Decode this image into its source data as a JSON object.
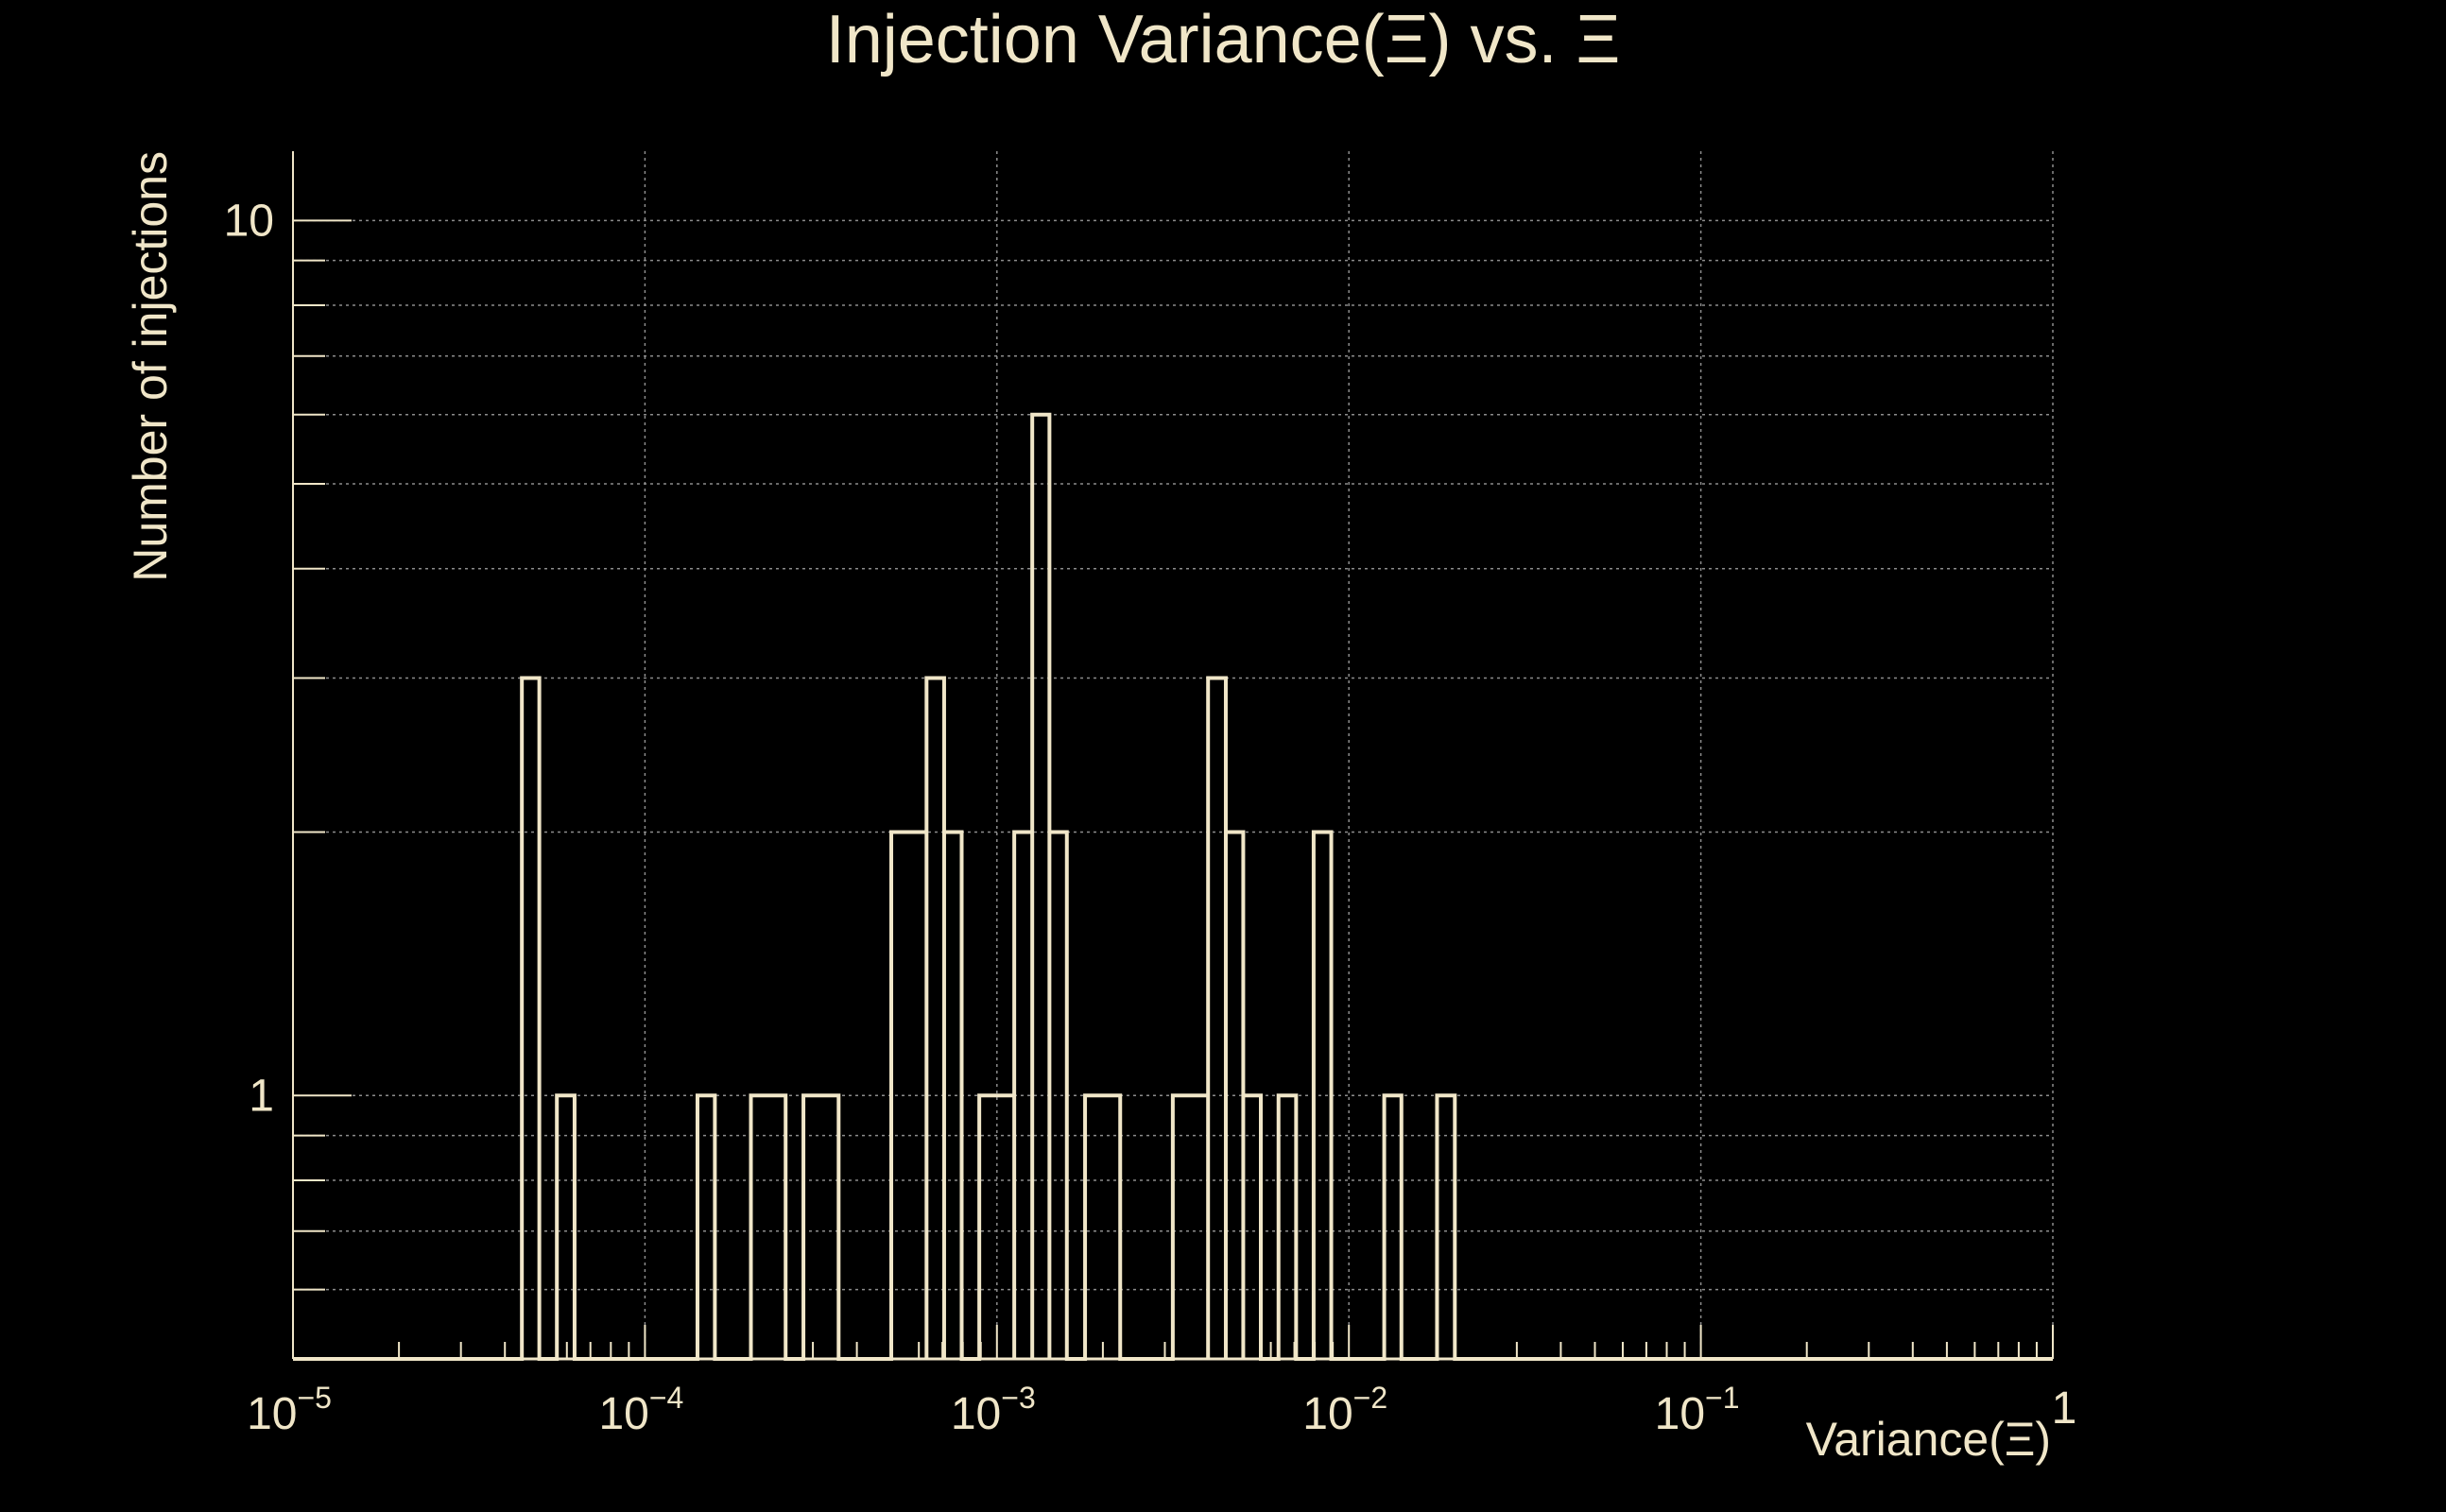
{
  "chart_data": {
    "type": "histogram",
    "title": "Injection Variance(Ξ) vs. Ξ",
    "xlabel": "Variance(Ξ)",
    "ylabel": "Number of injections",
    "x_scale": "log",
    "y_scale": "log",
    "xlim": [
      1e-05,
      1
    ],
    "ylim": [
      0.5,
      12
    ],
    "grid": true,
    "x_ticks": [
      {
        "value": 1e-05,
        "base": "10",
        "exp": "−5"
      },
      {
        "value": 0.0001,
        "base": "10",
        "exp": "−4"
      },
      {
        "value": 0.001,
        "base": "10",
        "exp": "−3"
      },
      {
        "value": 0.01,
        "base": "10",
        "exp": "−2"
      },
      {
        "value": 0.1,
        "base": "10",
        "exp": "−1"
      },
      {
        "value": 1,
        "base": "1",
        "exp": ""
      }
    ],
    "y_ticks": [
      {
        "value": 1,
        "label": "1"
      },
      {
        "value": 10,
        "label": "10"
      }
    ],
    "bins_per_decade": 20,
    "bins": [
      {
        "x_low": 4.47e-05,
        "x_high": 5.01e-05,
        "count": 3
      },
      {
        "x_low": 5.62e-05,
        "x_high": 6.31e-05,
        "count": 1
      },
      {
        "x_low": 0.000141,
        "x_high": 0.000158,
        "count": 1
      },
      {
        "x_low": 0.0002,
        "x_high": 0.000251,
        "count": 1
      },
      {
        "x_low": 0.000282,
        "x_high": 0.000355,
        "count": 1
      },
      {
        "x_low": 0.000501,
        "x_high": 0.000631,
        "count": 2
      },
      {
        "x_low": 0.000631,
        "x_high": 0.000708,
        "count": 3
      },
      {
        "x_low": 0.000708,
        "x_high": 0.000794,
        "count": 2
      },
      {
        "x_low": 0.000891,
        "x_high": 0.00112,
        "count": 1
      },
      {
        "x_low": 0.00112,
        "x_high": 0.00126,
        "count": 2
      },
      {
        "x_low": 0.00126,
        "x_high": 0.00141,
        "count": 6
      },
      {
        "x_low": 0.00141,
        "x_high": 0.00158,
        "count": 2
      },
      {
        "x_low": 0.00178,
        "x_high": 0.00224,
        "count": 1
      },
      {
        "x_low": 0.00316,
        "x_high": 0.00398,
        "count": 1
      },
      {
        "x_low": 0.00398,
        "x_high": 0.00447,
        "count": 3
      },
      {
        "x_low": 0.00447,
        "x_high": 0.00501,
        "count": 2
      },
      {
        "x_low": 0.00501,
        "x_high": 0.00562,
        "count": 1
      },
      {
        "x_low": 0.00631,
        "x_high": 0.00708,
        "count": 1
      },
      {
        "x_low": 0.00794,
        "x_high": 0.00891,
        "count": 2
      },
      {
        "x_low": 0.0126,
        "x_high": 0.0141,
        "count": 1
      },
      {
        "x_low": 0.0178,
        "x_high": 0.02,
        "count": 1
      }
    ],
    "line_color": "#f0e6c8",
    "background_color": "#000000",
    "grid_color": "#8c8c8c"
  }
}
